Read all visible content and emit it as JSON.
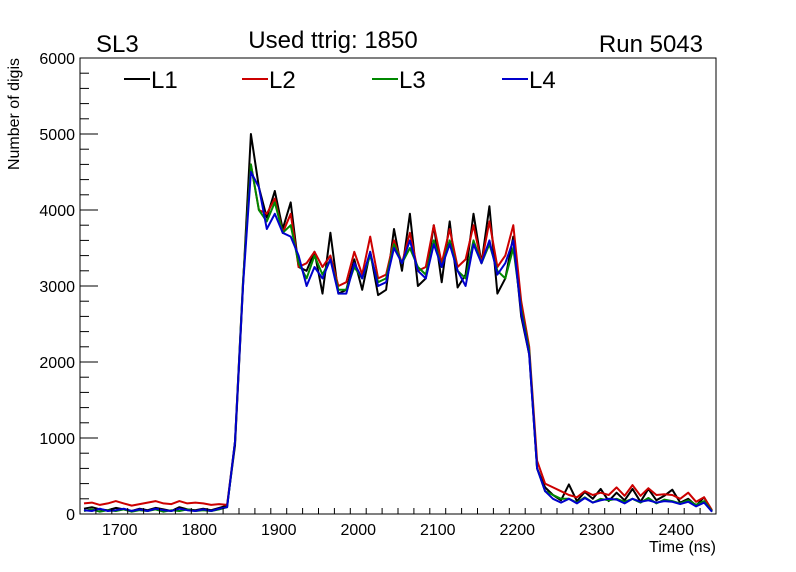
{
  "header": {
    "left": "SL3",
    "center": "Used ttrig: 1850",
    "right": "Run 5043"
  },
  "chart_data": {
    "type": "line",
    "title": "Used ttrig: 1850",
    "xlabel": "Time (ns)",
    "ylabel": "Number of digis",
    "xlim": [
      1650,
      2450
    ],
    "ylim": [
      0,
      6000
    ],
    "x_ticks": [
      1700,
      1800,
      1900,
      2000,
      2100,
      2200,
      2300,
      2400
    ],
    "y_ticks": [
      0,
      1000,
      2000,
      3000,
      4000,
      5000,
      6000
    ],
    "legend_position": "top",
    "x": [
      1655,
      1665,
      1675,
      1685,
      1695,
      1705,
      1715,
      1725,
      1735,
      1745,
      1755,
      1765,
      1775,
      1785,
      1795,
      1805,
      1815,
      1825,
      1835,
      1845,
      1855,
      1865,
      1875,
      1885,
      1895,
      1905,
      1915,
      1925,
      1935,
      1945,
      1955,
      1965,
      1975,
      1985,
      1995,
      2005,
      2015,
      2025,
      2035,
      2045,
      2055,
      2065,
      2075,
      2085,
      2095,
      2105,
      2115,
      2125,
      2135,
      2145,
      2155,
      2165,
      2175,
      2185,
      2195,
      2205,
      2215,
      2225,
      2235,
      2245,
      2255,
      2265,
      2275,
      2285,
      2295,
      2305,
      2315,
      2325,
      2335,
      2345,
      2355,
      2365,
      2375,
      2385,
      2395,
      2405,
      2415,
      2425,
      2435,
      2445
    ],
    "series": [
      {
        "name": "L1",
        "color": "#000000",
        "values": [
          70,
          90,
          60,
          50,
          80,
          60,
          40,
          70,
          50,
          80,
          60,
          40,
          90,
          60,
          50,
          70,
          50,
          80,
          110,
          900,
          3000,
          5000,
          4300,
          3900,
          4250,
          3750,
          4100,
          3250,
          3200,
          3450,
          2900,
          3700,
          2900,
          2950,
          3350,
          2950,
          3450,
          2880,
          2950,
          3750,
          3200,
          3950,
          3000,
          3100,
          3800,
          3050,
          3850,
          2980,
          3150,
          3950,
          3300,
          4050,
          2900,
          3100,
          3650,
          2600,
          2100,
          600,
          350,
          250,
          180,
          390,
          170,
          290,
          200,
          330,
          170,
          280,
          180,
          330,
          160,
          330,
          180,
          240,
          320,
          150,
          200,
          110,
          220,
          30
        ]
      },
      {
        "name": "L2",
        "color": "#cc0000",
        "values": [
          140,
          150,
          120,
          140,
          170,
          140,
          110,
          130,
          150,
          170,
          140,
          130,
          170,
          140,
          150,
          140,
          120,
          130,
          120,
          950,
          3050,
          4600,
          4000,
          3950,
          4150,
          3700,
          3950,
          3250,
          3300,
          3450,
          3250,
          3400,
          3000,
          3050,
          3450,
          3150,
          3650,
          3100,
          3150,
          3600,
          3300,
          3700,
          3200,
          3250,
          3800,
          3300,
          3750,
          3250,
          3350,
          3800,
          3300,
          3850,
          3250,
          3400,
          3800,
          2800,
          2200,
          700,
          400,
          350,
          300,
          250,
          220,
          300,
          250,
          280,
          250,
          350,
          240,
          380,
          240,
          340,
          250,
          260,
          250,
          200,
          280,
          160,
          220,
          50
        ]
      },
      {
        "name": "L3",
        "color": "#008800",
        "values": [
          40,
          60,
          30,
          50,
          40,
          60,
          30,
          50,
          40,
          60,
          30,
          50,
          40,
          60,
          40,
          50,
          40,
          60,
          90,
          950,
          3050,
          4600,
          4000,
          3850,
          4100,
          3700,
          3800,
          3300,
          3100,
          3400,
          3150,
          3350,
          2950,
          2950,
          3250,
          3100,
          3400,
          3050,
          3100,
          3550,
          3300,
          3500,
          3250,
          3150,
          3600,
          3250,
          3600,
          3200,
          3100,
          3600,
          3300,
          3550,
          3200,
          3100,
          3500,
          2700,
          2150,
          600,
          300,
          250,
          200,
          200,
          150,
          220,
          150,
          200,
          180,
          200,
          160,
          200,
          150,
          210,
          140,
          190,
          170,
          140,
          180,
          120,
          170,
          40
        ]
      },
      {
        "name": "L4",
        "color": "#0000cc",
        "values": [
          50,
          40,
          70,
          40,
          50,
          70,
          40,
          60,
          40,
          70,
          50,
          40,
          70,
          50,
          40,
          60,
          40,
          70,
          90,
          950,
          3000,
          4500,
          4300,
          3750,
          3950,
          3700,
          3650,
          3400,
          3000,
          3250,
          3100,
          3350,
          2900,
          2900,
          3300,
          3100,
          3450,
          3000,
          3050,
          3500,
          3300,
          3600,
          3200,
          3100,
          3550,
          3250,
          3550,
          3200,
          3000,
          3550,
          3300,
          3600,
          3150,
          3300,
          3600,
          2650,
          2100,
          600,
          300,
          200,
          150,
          200,
          140,
          210,
          150,
          180,
          200,
          190,
          140,
          200,
          160,
          180,
          150,
          170,
          160,
          130,
          160,
          100,
          150,
          30
        ]
      }
    ]
  }
}
